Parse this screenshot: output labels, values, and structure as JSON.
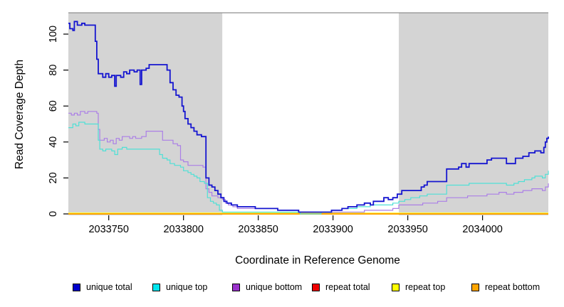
{
  "chart_data": {
    "type": "line",
    "subtype": "step",
    "title": "",
    "xlabel": "Coordinate in Reference Genome",
    "ylabel": "Read Coverage Depth",
    "x_range": [
      2033723,
      2034044
    ],
    "y_range": [
      0,
      112
    ],
    "x_ticks": [
      "2033750",
      "2033800",
      "2033850",
      "2033900",
      "2033950",
      "2034000"
    ],
    "x_tick_values": [
      2033750,
      2033800,
      2033850,
      2033900,
      2033950,
      2034000
    ],
    "y_ticks": [
      "0",
      "20",
      "40",
      "60",
      "80",
      "100"
    ],
    "y_tick_values": [
      0,
      20,
      40,
      60,
      80,
      100
    ],
    "grid": false,
    "legend_position": "bottom",
    "background_bands": [
      {
        "from": 2033723,
        "to": 2033826,
        "color": "#d4d4d4"
      },
      {
        "from": 2033826,
        "to": 2033944,
        "color": "#ffffff"
      },
      {
        "from": 2033944,
        "to": 2034044,
        "color": "#d4d4d4"
      }
    ],
    "series": [
      {
        "label": "unique total",
        "swatch": "#0000cc",
        "color": "#1515d0",
        "width": 1.8,
        "points": [
          [
            2033723,
            106
          ],
          [
            2033724,
            103
          ],
          [
            2033726,
            102
          ],
          [
            2033727,
            107
          ],
          [
            2033729,
            105
          ],
          [
            2033732,
            106
          ],
          [
            2033734,
            105
          ],
          [
            2033740,
            105
          ],
          [
            2033741,
            96
          ],
          [
            2033742,
            86
          ],
          [
            2033743,
            78
          ],
          [
            2033746,
            76
          ],
          [
            2033748,
            78
          ],
          [
            2033750,
            76
          ],
          [
            2033752,
            77
          ],
          [
            2033754,
            71
          ],
          [
            2033755,
            77
          ],
          [
            2033758,
            76
          ],
          [
            2033760,
            79
          ],
          [
            2033762,
            78
          ],
          [
            2033764,
            80
          ],
          [
            2033767,
            79
          ],
          [
            2033769,
            80
          ],
          [
            2033771,
            72
          ],
          [
            2033772,
            80
          ],
          [
            2033775,
            81
          ],
          [
            2033777,
            83
          ],
          [
            2033786,
            83
          ],
          [
            2033789,
            80
          ],
          [
            2033791,
            73
          ],
          [
            2033793,
            69
          ],
          [
            2033795,
            66
          ],
          [
            2033797,
            65
          ],
          [
            2033799,
            60
          ],
          [
            2033800,
            57
          ],
          [
            2033801,
            53
          ],
          [
            2033803,
            50
          ],
          [
            2033805,
            48
          ],
          [
            2033807,
            46
          ],
          [
            2033809,
            44
          ],
          [
            2033812,
            43
          ],
          [
            2033815,
            20
          ],
          [
            2033817,
            16
          ],
          [
            2033819,
            15
          ],
          [
            2033821,
            13
          ],
          [
            2033823,
            11
          ],
          [
            2033825,
            9
          ],
          [
            2033827,
            7
          ],
          [
            2033829,
            6
          ],
          [
            2033832,
            5
          ],
          [
            2033836,
            4
          ],
          [
            2033848,
            3
          ],
          [
            2033863,
            2
          ],
          [
            2033877,
            1
          ],
          [
            2033892,
            1
          ],
          [
            2033899,
            2
          ],
          [
            2033906,
            3
          ],
          [
            2033910,
            4
          ],
          [
            2033916,
            5
          ],
          [
            2033921,
            6
          ],
          [
            2033925,
            5
          ],
          [
            2033927,
            7
          ],
          [
            2033932,
            7
          ],
          [
            2033934,
            9
          ],
          [
            2033937,
            8
          ],
          [
            2033940,
            9
          ],
          [
            2033943,
            11
          ],
          [
            2033946,
            13
          ],
          [
            2033957,
            13
          ],
          [
            2033959,
            15
          ],
          [
            2033961,
            16
          ],
          [
            2033963,
            18
          ],
          [
            2033975,
            18
          ],
          [
            2033976,
            25
          ],
          [
            2033984,
            26
          ],
          [
            2033986,
            28
          ],
          [
            2033989,
            26
          ],
          [
            2033991,
            28
          ],
          [
            2034003,
            30
          ],
          [
            2034006,
            31
          ],
          [
            2034016,
            28
          ],
          [
            2034022,
            31
          ],
          [
            2034027,
            32
          ],
          [
            2034031,
            34
          ],
          [
            2034035,
            35
          ],
          [
            2034039,
            34
          ],
          [
            2034041,
            37
          ],
          [
            2034042,
            40
          ],
          [
            2034043,
            42
          ],
          [
            2034044,
            43
          ]
        ]
      },
      {
        "label": "unique top",
        "swatch": "#00e5ee",
        "color": "#4fe0d6",
        "width": 1.2,
        "points": [
          [
            2033723,
            48
          ],
          [
            2033726,
            50
          ],
          [
            2033728,
            49
          ],
          [
            2033730,
            51
          ],
          [
            2033734,
            50
          ],
          [
            2033742,
            50
          ],
          [
            2033743,
            41
          ],
          [
            2033744,
            36
          ],
          [
            2033746,
            35
          ],
          [
            2033748,
            36
          ],
          [
            2033752,
            35
          ],
          [
            2033754,
            33
          ],
          [
            2033756,
            36
          ],
          [
            2033759,
            37
          ],
          [
            2033762,
            36
          ],
          [
            2033783,
            36
          ],
          [
            2033784,
            33
          ],
          [
            2033786,
            31
          ],
          [
            2033789,
            30
          ],
          [
            2033791,
            28
          ],
          [
            2033794,
            27
          ],
          [
            2033798,
            26
          ],
          [
            2033800,
            24
          ],
          [
            2033803,
            23
          ],
          [
            2033805,
            22
          ],
          [
            2033807,
            21
          ],
          [
            2033809,
            20
          ],
          [
            2033811,
            18
          ],
          [
            2033814,
            17
          ],
          [
            2033816,
            9
          ],
          [
            2033818,
            7
          ],
          [
            2033820,
            6
          ],
          [
            2033822,
            5
          ],
          [
            2033824,
            2
          ],
          [
            2033826,
            1
          ],
          [
            2033878,
            0
          ],
          [
            2033892,
            1
          ],
          [
            2033899,
            2
          ],
          [
            2033906,
            3
          ],
          [
            2033916,
            4
          ],
          [
            2033925,
            5
          ],
          [
            2033940,
            6
          ],
          [
            2033944,
            7
          ],
          [
            2033948,
            8
          ],
          [
            2033952,
            9
          ],
          [
            2033958,
            10
          ],
          [
            2033963,
            11
          ],
          [
            2033976,
            16
          ],
          [
            2033991,
            17
          ],
          [
            2034016,
            16
          ],
          [
            2034021,
            17
          ],
          [
            2034024,
            18
          ],
          [
            2034028,
            19
          ],
          [
            2034033,
            20
          ],
          [
            2034035,
            21
          ],
          [
            2034040,
            20
          ],
          [
            2034042,
            22
          ],
          [
            2034044,
            24
          ]
        ]
      },
      {
        "label": "unique bottom",
        "swatch": "#9a32cc",
        "color": "#ab7fe6",
        "width": 1.2,
        "points": [
          [
            2033723,
            56
          ],
          [
            2033725,
            55
          ],
          [
            2033727,
            56
          ],
          [
            2033729,
            55
          ],
          [
            2033731,
            57
          ],
          [
            2033734,
            56
          ],
          [
            2033736,
            57
          ],
          [
            2033742,
            56
          ],
          [
            2033743,
            47
          ],
          [
            2033744,
            41
          ],
          [
            2033747,
            42
          ],
          [
            2033749,
            40
          ],
          [
            2033751,
            41
          ],
          [
            2033753,
            39
          ],
          [
            2033755,
            42
          ],
          [
            2033757,
            41
          ],
          [
            2033759,
            43
          ],
          [
            2033764,
            42
          ],
          [
            2033766,
            43
          ],
          [
            2033768,
            42
          ],
          [
            2033772,
            43
          ],
          [
            2033775,
            46
          ],
          [
            2033784,
            46
          ],
          [
            2033786,
            41
          ],
          [
            2033793,
            39
          ],
          [
            2033796,
            38
          ],
          [
            2033798,
            30
          ],
          [
            2033800,
            29
          ],
          [
            2033803,
            27
          ],
          [
            2033811,
            27
          ],
          [
            2033813,
            26
          ],
          [
            2033815,
            14
          ],
          [
            2033817,
            12
          ],
          [
            2033819,
            10
          ],
          [
            2033823,
            9
          ],
          [
            2033826,
            8
          ],
          [
            2033828,
            6
          ],
          [
            2033830,
            5
          ],
          [
            2033833,
            4
          ],
          [
            2033836,
            3
          ],
          [
            2033853,
            3
          ],
          [
            2033863,
            2
          ],
          [
            2033877,
            1
          ],
          [
            2033916,
            1
          ],
          [
            2033921,
            2
          ],
          [
            2033936,
            2
          ],
          [
            2033940,
            3
          ],
          [
            2033944,
            5
          ],
          [
            2033957,
            5
          ],
          [
            2033960,
            6
          ],
          [
            2033970,
            7
          ],
          [
            2033976,
            9
          ],
          [
            2033990,
            10
          ],
          [
            2034003,
            11
          ],
          [
            2034011,
            12
          ],
          [
            2034016,
            11
          ],
          [
            2034021,
            12
          ],
          [
            2034027,
            13
          ],
          [
            2034033,
            14
          ],
          [
            2034040,
            13
          ],
          [
            2034042,
            15
          ],
          [
            2034044,
            17
          ]
        ]
      },
      {
        "label": "repeat total",
        "swatch": "#ee0000",
        "color": "#ee0000",
        "width": 1.0,
        "points": [
          [
            2033723,
            0
          ],
          [
            2034044,
            0
          ]
        ]
      },
      {
        "label": "repeat top",
        "swatch": "#ffff00",
        "color": "#ffff4d",
        "width": 1.2,
        "points": [
          [
            2033723,
            0
          ],
          [
            2034044,
            0
          ]
        ]
      },
      {
        "label": "repeat bottom",
        "swatch": "#ffa500",
        "color": "#ffa500",
        "width": 2.0,
        "points": [
          [
            2033723,
            0
          ],
          [
            2034044,
            0
          ]
        ]
      }
    ]
  }
}
